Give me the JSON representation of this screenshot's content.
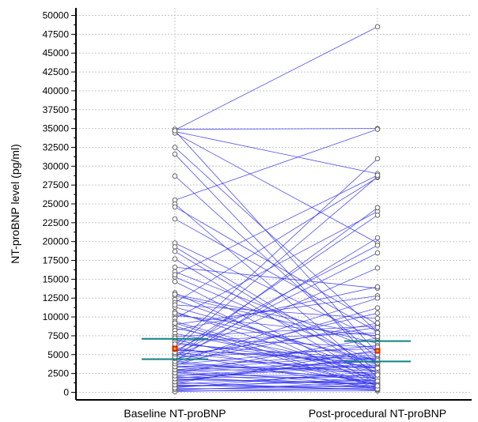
{
  "chart_data": {
    "type": "line",
    "ylabel": "NT-proBNP level (pg/ml)",
    "categories": [
      "Baseline NT-proBNP",
      "Post-procedural NT-proBNP"
    ],
    "ylim": [
      -1000,
      51000
    ],
    "yticks": [
      0,
      2500,
      5000,
      7500,
      10000,
      12500,
      15000,
      17500,
      20000,
      22500,
      25000,
      27500,
      30000,
      32500,
      35000,
      37500,
      40000,
      42500,
      45000,
      47500,
      50000
    ],
    "grid": true,
    "colors": {
      "pair_line": "#3333ee",
      "marker_stroke": "#666666",
      "marker_fill": "#ffffff",
      "median_line": "#128282",
      "median_marker": "#dd2200",
      "median_marker_inner": "#e8c000",
      "grid": "#c8c8c8",
      "axis": "#000000"
    },
    "median_lines": [
      {
        "category": "Baseline NT-proBNP",
        "q1": 4400,
        "median": 5800,
        "q3": 7100
      },
      {
        "category": "Post-procedural NT-proBNP",
        "q1": 4100,
        "median": 5500,
        "q3": 6800
      }
    ],
    "pairs": [
      [
        34800,
        48500
      ],
      [
        34900,
        35000
      ],
      [
        34600,
        29000
      ],
      [
        34400,
        19800
      ],
      [
        34700,
        5200
      ],
      [
        32500,
        8000
      ],
      [
        31600,
        3500
      ],
      [
        28700,
        4500
      ],
      [
        25500,
        34900
      ],
      [
        25000,
        2000
      ],
      [
        24600,
        9000
      ],
      [
        23000,
        8000
      ],
      [
        19800,
        7000
      ],
      [
        19300,
        3000
      ],
      [
        18700,
        2500
      ],
      [
        17700,
        1500
      ],
      [
        16600,
        13800
      ],
      [
        16000,
        5500
      ],
      [
        15300,
        4000
      ],
      [
        14700,
        1200
      ],
      [
        13200,
        900
      ],
      [
        12800,
        6500
      ],
      [
        12300,
        2600
      ],
      [
        11900,
        28500
      ],
      [
        11300,
        3800
      ],
      [
        10700,
        1900
      ],
      [
        10200,
        7500
      ],
      [
        9800,
        24000
      ],
      [
        9400,
        1700
      ],
      [
        9000,
        12800
      ],
      [
        8800,
        600
      ],
      [
        8500,
        3100
      ],
      [
        8200,
        14000
      ],
      [
        7800,
        2700
      ],
      [
        7400,
        8800
      ],
      [
        7000,
        1000
      ],
      [
        6600,
        3300
      ],
      [
        6200,
        31000
      ],
      [
        5800,
        28600
      ],
      [
        5500,
        19500
      ],
      [
        5200,
        23500
      ],
      [
        5000,
        18500
      ],
      [
        4800,
        16500
      ],
      [
        4600,
        24500
      ],
      [
        4400,
        10500
      ],
      [
        4200,
        20500
      ],
      [
        4000,
        12500
      ],
      [
        3900,
        9200
      ],
      [
        3700,
        6200
      ],
      [
        3500,
        2900
      ],
      [
        3300,
        5300
      ],
      [
        3100,
        800
      ],
      [
        2900,
        4100
      ],
      [
        2700,
        1400
      ],
      [
        2500,
        7200
      ],
      [
        2300,
        2200
      ],
      [
        2100,
        500
      ],
      [
        1900,
        3600
      ],
      [
        1700,
        1100
      ],
      [
        1500,
        4600
      ],
      [
        1300,
        300
      ],
      [
        1100,
        2400
      ],
      [
        900,
        700
      ],
      [
        700,
        1800
      ],
      [
        500,
        400
      ],
      [
        300,
        1300
      ],
      [
        200,
        200
      ],
      [
        100,
        600
      ],
      [
        6800,
        7900
      ],
      [
        5600,
        4300
      ],
      [
        4900,
        8600
      ],
      [
        3600,
        11200
      ],
      [
        2800,
        3400
      ],
      [
        2000,
        2000
      ],
      [
        1200,
        5600
      ],
      [
        800,
        1600
      ],
      [
        400,
        900
      ],
      [
        600,
        2800
      ],
      [
        1000,
        350
      ],
      [
        1400,
        4800
      ],
      [
        1800,
        1200
      ],
      [
        2200,
        3800
      ],
      [
        2600,
        650
      ],
      [
        3000,
        5000
      ],
      [
        3400,
        1900
      ],
      [
        3800,
        2500
      ],
      [
        4100,
        1500
      ],
      [
        4500,
        3200
      ],
      [
        4700,
        5800
      ],
      [
        5100,
        450
      ],
      [
        5300,
        2300
      ],
      [
        5700,
        3900
      ],
      [
        6000,
        1000
      ],
      [
        6400,
        4400
      ],
      [
        7200,
        6000
      ],
      [
        9200,
        850
      ],
      [
        10500,
        4200
      ],
      [
        11600,
        9800
      ],
      [
        13000,
        7400
      ],
      [
        15600,
        28800
      ]
    ]
  }
}
